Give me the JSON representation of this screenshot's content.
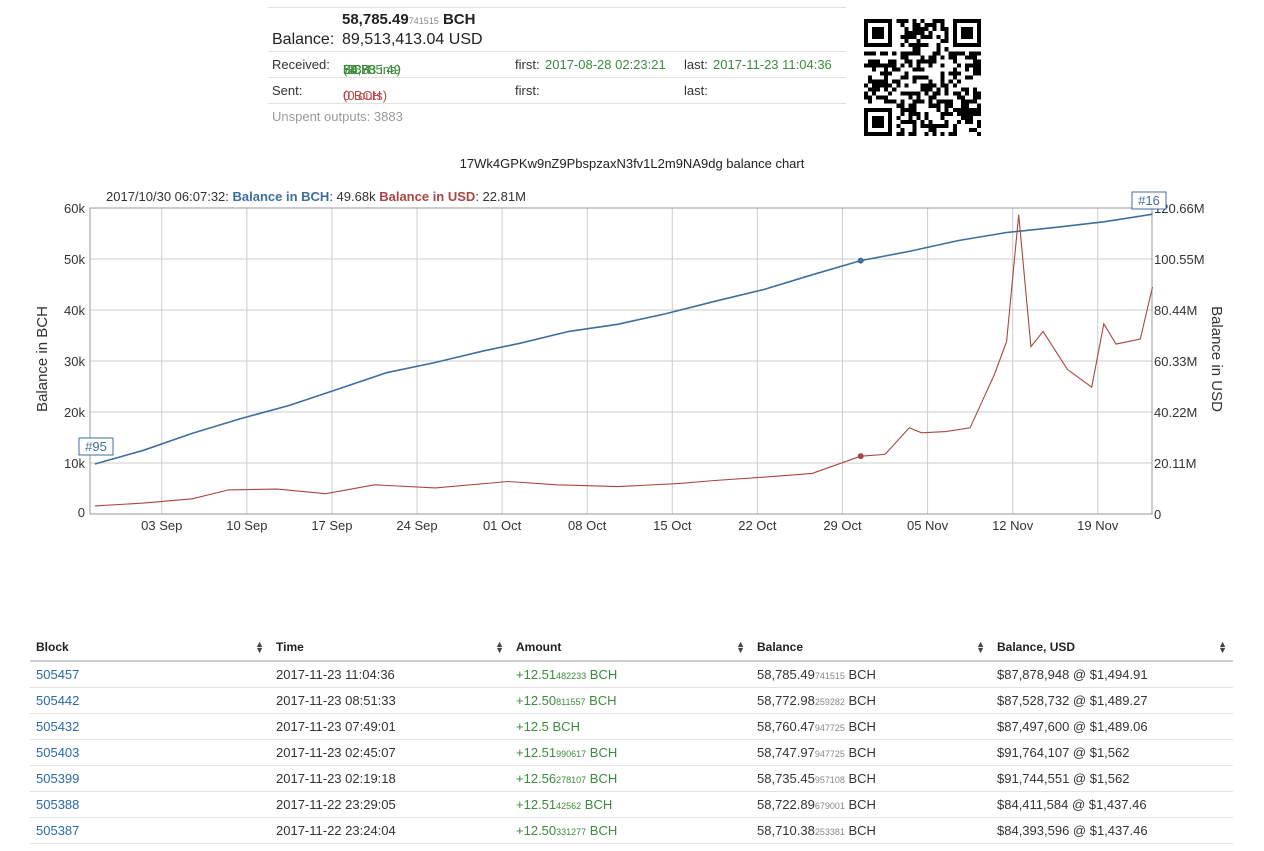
{
  "summary": {
    "balance_bch_main": "58,785.49",
    "balance_bch_small": "741515",
    "balance_bch_unit": "BCH",
    "balance_label": "Balance:",
    "balance_usd": "89,513,413.04 USD",
    "received_label": "Received:",
    "received_main": "58,785.49",
    "received_small": "74",
    "received_unit": " BCH",
    "received_ins": "(3883 ins)",
    "received_first_label": "first:",
    "received_first": "2017-08-28 02:23:21",
    "received_last_label": "last:",
    "received_last": "2017-11-23 11:04:36",
    "sent_label": "Sent:",
    "sent_value": "0 BCH",
    "sent_outs": "(0 outs)",
    "sent_first_label": "first:",
    "sent_last_label": "last:",
    "unspent": "Unspent outputs: 3883"
  },
  "chart_data": {
    "type": "line",
    "title": "17Wk4GPKw9nZ9PbspzaxN3fv1L2m9NA9dg balance chart",
    "tooltip": {
      "date": "2017/10/30 06:07:32:",
      "bch_label": "Balance in BCH",
      "bch_value": ": 49.68k",
      "usd_label": "Balance in USD",
      "usd_value": ": 22.81M"
    },
    "ylabel": "Balance in BCH",
    "ylabel_right": "Balance in USD",
    "ylim": [
      0,
      60000
    ],
    "ylim_right": [
      0,
      120660000
    ],
    "y_ticks": [
      "0",
      "10k",
      "20k",
      "30k",
      "40k",
      "50k",
      "60k"
    ],
    "y_ticks_right": [
      "0",
      "20.11M",
      "40.22M",
      "60.33M",
      "80.44M",
      "100.55M",
      "120.66M"
    ],
    "x_ticks": [
      "03 Sep",
      "10 Sep",
      "17 Sep",
      "24 Sep",
      "01 Oct",
      "08 Oct",
      "15 Oct",
      "22 Oct",
      "29 Oct",
      "05 Nov",
      "12 Nov",
      "19 Nov"
    ],
    "flags": {
      "left": "#95",
      "right": "#16"
    },
    "grid": true,
    "colors": {
      "bch": "#3f6e9e",
      "usd": "#aa4643"
    },
    "series": [
      {
        "name": "Balance in BCH",
        "axis": "left",
        "x": [
          "2017-08-28",
          "2017-09-01",
          "2017-09-05",
          "2017-09-09",
          "2017-09-13",
          "2017-09-17",
          "2017-09-21",
          "2017-09-25",
          "2017-09-29",
          "2017-10-02",
          "2017-10-06",
          "2017-10-10",
          "2017-10-14",
          "2017-10-18",
          "2017-10-22",
          "2017-10-26",
          "2017-10-30",
          "2017-11-03",
          "2017-11-07",
          "2017-11-11",
          "2017-11-15",
          "2017-11-19",
          "2017-11-23"
        ],
        "values": [
          9800,
          12500,
          15800,
          18700,
          21300,
          24500,
          27700,
          29700,
          32000,
          33500,
          35800,
          37200,
          39300,
          41700,
          44000,
          46900,
          49680,
          51500,
          53600,
          55200,
          56200,
          57300,
          58785
        ]
      },
      {
        "name": "Balance in USD",
        "axis": "right",
        "x": [
          "2017-08-28",
          "2017-09-01",
          "2017-09-05",
          "2017-09-08",
          "2017-09-12",
          "2017-09-16",
          "2017-09-20",
          "2017-09-25",
          "2017-10-01",
          "2017-10-05",
          "2017-10-10",
          "2017-10-15",
          "2017-10-18",
          "2017-10-22",
          "2017-10-26",
          "2017-10-30",
          "2017-11-01",
          "2017-11-03",
          "2017-11-04",
          "2017-11-06",
          "2017-11-08",
          "2017-11-10",
          "2017-11-11",
          "2017-11-12",
          "2017-11-13",
          "2017-11-14",
          "2017-11-16",
          "2017-11-18",
          "2017-11-19",
          "2017-11-20",
          "2017-11-22",
          "2017-11-23"
        ],
        "values": [
          3200,
          4300,
          6000,
          9500,
          9800,
          8000,
          11500,
          10300,
          12800,
          11500,
          10800,
          12000,
          13200,
          14500,
          16000,
          22810,
          23500,
          34000,
          32000,
          32500,
          34000,
          55000,
          68000,
          118000,
          66000,
          72000,
          57000,
          50000,
          75000,
          67000,
          69000,
          89500
        ]
      }
    ]
  },
  "table": {
    "headers": [
      "Block",
      "Time",
      "Amount",
      "Balance",
      "Balance, USD"
    ],
    "rows": [
      {
        "block": "505457",
        "time": "2017-11-23 11:04:36",
        "amt_main": "+12.51",
        "amt_small": "482233",
        "amt_unit": " BCH",
        "bal_main": "58,785.49",
        "bal_small": "741515",
        "bal_unit": " BCH",
        "usd": "$87,878,948 @ $1,494.91"
      },
      {
        "block": "505442",
        "time": "2017-11-23 08:51:33",
        "amt_main": "+12.50",
        "amt_small": "811557",
        "amt_unit": " BCH",
        "bal_main": "58,772.98",
        "bal_small": "259282",
        "bal_unit": " BCH",
        "usd": "$87,528,732 @ $1,489.27"
      },
      {
        "block": "505432",
        "time": "2017-11-23 07:49:01",
        "amt_main": "+12.5 BCH",
        "amt_small": "",
        "amt_unit": "",
        "bal_main": "58,760.47",
        "bal_small": "947725",
        "bal_unit": " BCH",
        "usd": "$87,497,600 @ $1,489.06"
      },
      {
        "block": "505403",
        "time": "2017-11-23 02:45:07",
        "amt_main": "+12.51",
        "amt_small": "990617",
        "amt_unit": " BCH",
        "bal_main": "58,747.97",
        "bal_small": "947725",
        "bal_unit": " BCH",
        "usd": "$91,764,107 @ $1,562"
      },
      {
        "block": "505399",
        "time": "2017-11-23 02:19:18",
        "amt_main": "+12.56",
        "amt_small": "278107",
        "amt_unit": " BCH",
        "bal_main": "58,735.45",
        "bal_small": "957108",
        "bal_unit": " BCH",
        "usd": "$91,744,551 @ $1,562"
      },
      {
        "block": "505388",
        "time": "2017-11-22 23:29:05",
        "amt_main": "+12.51",
        "amt_small": "42562",
        "amt_unit": " BCH",
        "bal_main": "58,722.89",
        "bal_small": "679001",
        "bal_unit": " BCH",
        "usd": "$84,411,584 @ $1,437.46"
      },
      {
        "block": "505387",
        "time": "2017-11-22 23:24:04",
        "amt_main": "+12.50",
        "amt_small": "331277",
        "amt_unit": " BCH",
        "bal_main": "58,710.38",
        "bal_small": "253381",
        "bal_unit": " BCH",
        "usd": "$84,393,596 @ $1,437.46"
      }
    ]
  }
}
